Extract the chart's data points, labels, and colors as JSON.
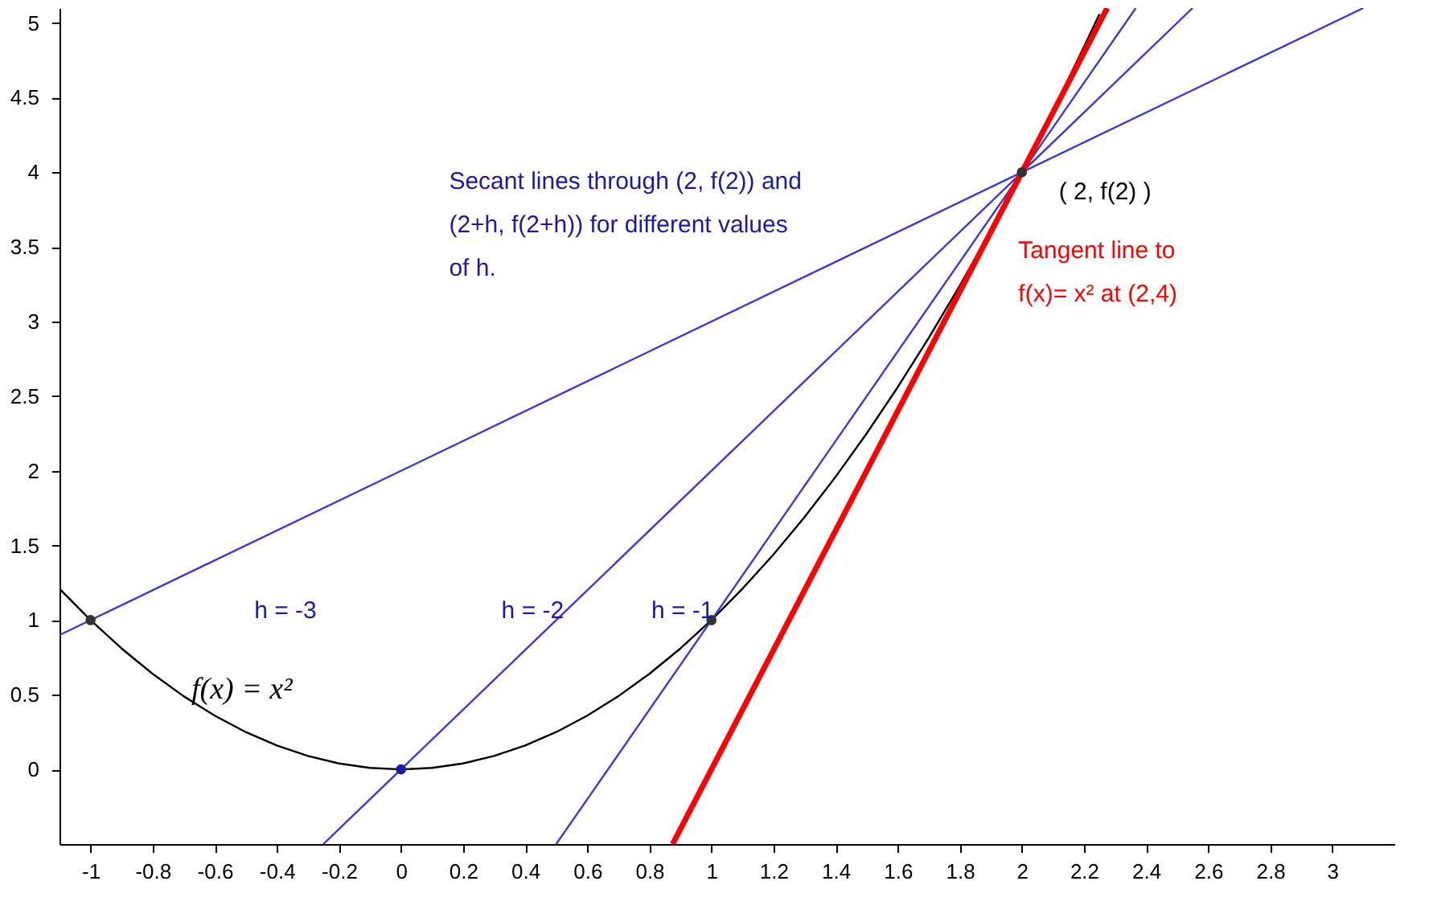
{
  "chart_data": {
    "type": "line",
    "xlim": [
      -1.1,
      3.2
    ],
    "ylim": [
      -0.5,
      5.1
    ],
    "xticks": [
      -1,
      -0.8,
      -0.6,
      -0.4,
      -0.2,
      0,
      0.2,
      0.4,
      0.6,
      0.8,
      1,
      1.2,
      1.4,
      1.6,
      1.8,
      2,
      2.2,
      2.4,
      2.6,
      2.8,
      3
    ],
    "yticks": [
      0,
      0.5,
      1,
      1.5,
      2,
      2.5,
      3,
      3.5,
      4,
      4.5,
      5
    ],
    "grid": false,
    "line_style": "solid",
    "series": [
      {
        "color": "#000000",
        "x": [
          -1.1,
          -1,
          -0.9,
          -0.8,
          -0.7,
          -0.6,
          -0.5,
          -0.4,
          -0.3,
          -0.2,
          -0.1,
          0,
          0.1,
          0.2,
          0.3,
          0.4,
          0.5,
          0.6,
          0.7,
          0.8,
          0.9,
          1,
          1.1,
          1.2,
          1.3,
          1.4,
          1.5,
          1.6,
          1.7,
          1.8,
          1.9,
          2,
          2.1,
          2.2,
          2.25
        ],
        "values": [
          1.21,
          1,
          0.81,
          0.64,
          0.49,
          0.36,
          0.25,
          0.16,
          0.09,
          0.04,
          0.01,
          0,
          0.01,
          0.04,
          0.09,
          0.16,
          0.25,
          0.36,
          0.49,
          0.64,
          0.81,
          1,
          1.21,
          1.44,
          1.69,
          1.96,
          2.25,
          2.56,
          2.89,
          3.24,
          3.61,
          4,
          4.41,
          4.84,
          5.06
        ]
      },
      {
        "color": "#3a3ad8",
        "x": [
          -1.1,
          3.1
        ],
        "values": [
          0.9,
          5.1
        ]
      },
      {
        "color": "#3a3ad8",
        "x": [
          -0.25,
          2.55
        ],
        "values": [
          -0.5,
          5.1
        ]
      },
      {
        "color": "#3a3ad8",
        "x": [
          0.5,
          2.367
        ],
        "values": [
          -0.5,
          5.1
        ]
      },
      {
        "color": "#ff0000",
        "x": [
          0.875,
          2.275
        ],
        "values": [
          -0.5,
          5.1
        ]
      },
      {
        "type": "scatter",
        "color": "#333333",
        "marker": "circle",
        "x": [
          -1,
          1,
          2
        ],
        "values": [
          1,
          1,
          4
        ]
      },
      {
        "type": "scatter",
        "color": "#1a1aa6",
        "marker": "circle",
        "x": [
          0
        ],
        "values": [
          0
        ]
      }
    ],
    "annotations": [
      "Secant lines through (2, f(2)) and\n(2+h, f(2+h)) for different values\nof h.",
      "( 2, f(2) )",
      "Tangent line to\nf(x)= x² at (2,4)",
      "h = -3",
      "h = -2",
      "h = -1",
      "f(x)  =  x²"
    ]
  }
}
